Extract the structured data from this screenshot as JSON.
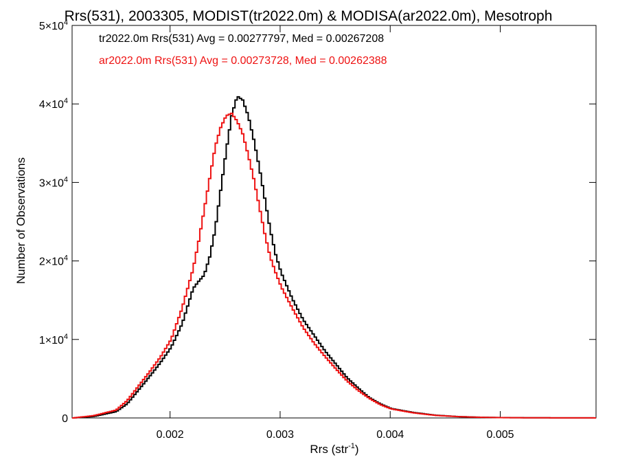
{
  "chart_data": {
    "type": "line",
    "title": "Rrs(531), 2003305, MODIST(tr2022.0m) & MODISA(ar2022.0m), Mesotroph",
    "xlabel": "Rrs (str",
    "xlabel_sup": "-1",
    "xlabel_close": ")",
    "ylabel": "Number of Observations",
    "xlim": [
      0.00111,
      0.00587
    ],
    "ylim": [
      0,
      50000
    ],
    "x_ticks": [
      {
        "value": 0.002,
        "label": "0.002"
      },
      {
        "value": 0.003,
        "label": "0.003"
      },
      {
        "value": 0.004,
        "label": "0.004"
      },
      {
        "value": 0.005,
        "label": "0.005"
      }
    ],
    "y_ticks": [
      {
        "value": 0,
        "label": "0",
        "sup": ""
      },
      {
        "value": 10000,
        "label": "1×10",
        "sup": "4"
      },
      {
        "value": 20000,
        "label": "2×10",
        "sup": "4"
      },
      {
        "value": 30000,
        "label": "3×10",
        "sup": "4"
      },
      {
        "value": 40000,
        "label": "4×10",
        "sup": "4"
      },
      {
        "value": 50000,
        "label": "5×10",
        "sup": "4"
      }
    ],
    "grid": false,
    "legend_position": "top-left",
    "series": [
      {
        "name": "tr2022.0m",
        "color": "#000000",
        "annotation": "tr2022.0m Rrs(531) Avg = 0.00277797, Med = 0.00267208",
        "points": [
          [
            0.00111,
            0
          ],
          [
            0.0013,
            200
          ],
          [
            0.0015,
            800
          ],
          [
            0.0016,
            1800
          ],
          [
            0.0017,
            3500
          ],
          [
            0.0018,
            5200
          ],
          [
            0.0019,
            7000
          ],
          [
            0.002,
            9000
          ],
          [
            0.0021,
            12000
          ],
          [
            0.0022,
            16500
          ],
          [
            0.00225,
            17400
          ],
          [
            0.0023,
            18200
          ],
          [
            0.00235,
            20500
          ],
          [
            0.0024,
            24000
          ],
          [
            0.00245,
            29000
          ],
          [
            0.0025,
            34000
          ],
          [
            0.00255,
            38500
          ],
          [
            0.0026,
            41000
          ],
          [
            0.00265,
            40500
          ],
          [
            0.0027,
            38500
          ],
          [
            0.00275,
            35500
          ],
          [
            0.0028,
            32000
          ],
          [
            0.00285,
            28000
          ],
          [
            0.0029,
            24000
          ],
          [
            0.00295,
            20800
          ],
          [
            0.003,
            18500
          ],
          [
            0.0031,
            15200
          ],
          [
            0.0032,
            12500
          ],
          [
            0.0033,
            10500
          ],
          [
            0.0034,
            8500
          ],
          [
            0.0035,
            6800
          ],
          [
            0.0036,
            5100
          ],
          [
            0.0037,
            3800
          ],
          [
            0.0038,
            2600
          ],
          [
            0.0039,
            1800
          ],
          [
            0.004,
            1200
          ],
          [
            0.0042,
            700
          ],
          [
            0.0044,
            350
          ],
          [
            0.0046,
            180
          ],
          [
            0.0048,
            90
          ],
          [
            0.005,
            45
          ],
          [
            0.0053,
            20
          ],
          [
            0.00587,
            5
          ]
        ]
      },
      {
        "name": "ar2022.0m",
        "color": "#ee1111",
        "annotation": "ar2022.0m Rrs(531) Avg = 0.00273728, Med = 0.00262388",
        "points": [
          [
            0.00111,
            0
          ],
          [
            0.0013,
            300
          ],
          [
            0.0015,
            1000
          ],
          [
            0.0016,
            2200
          ],
          [
            0.0017,
            4000
          ],
          [
            0.0018,
            5800
          ],
          [
            0.0019,
            7700
          ],
          [
            0.002,
            10000
          ],
          [
            0.0021,
            14000
          ],
          [
            0.0022,
            19000
          ],
          [
            0.00225,
            22500
          ],
          [
            0.0023,
            26500
          ],
          [
            0.00235,
            30500
          ],
          [
            0.0024,
            34500
          ],
          [
            0.00245,
            37000
          ],
          [
            0.0025,
            38500
          ],
          [
            0.00255,
            38800
          ],
          [
            0.0026,
            37800
          ],
          [
            0.00265,
            36200
          ],
          [
            0.0027,
            33500
          ],
          [
            0.00275,
            30500
          ],
          [
            0.0028,
            27000
          ],
          [
            0.00285,
            23500
          ],
          [
            0.0029,
            20500
          ],
          [
            0.00295,
            18500
          ],
          [
            0.003,
            16700
          ],
          [
            0.0031,
            14000
          ],
          [
            0.0032,
            11500
          ],
          [
            0.0033,
            9500
          ],
          [
            0.0034,
            7800
          ],
          [
            0.0035,
            6200
          ],
          [
            0.0036,
            4700
          ],
          [
            0.0037,
            3500
          ],
          [
            0.0038,
            2500
          ],
          [
            0.0039,
            1700
          ],
          [
            0.004,
            1150
          ],
          [
            0.0042,
            650
          ],
          [
            0.0044,
            330
          ],
          [
            0.0046,
            170
          ],
          [
            0.0048,
            85
          ],
          [
            0.005,
            40
          ],
          [
            0.0053,
            20
          ],
          [
            0.00587,
            5
          ]
        ]
      }
    ]
  }
}
